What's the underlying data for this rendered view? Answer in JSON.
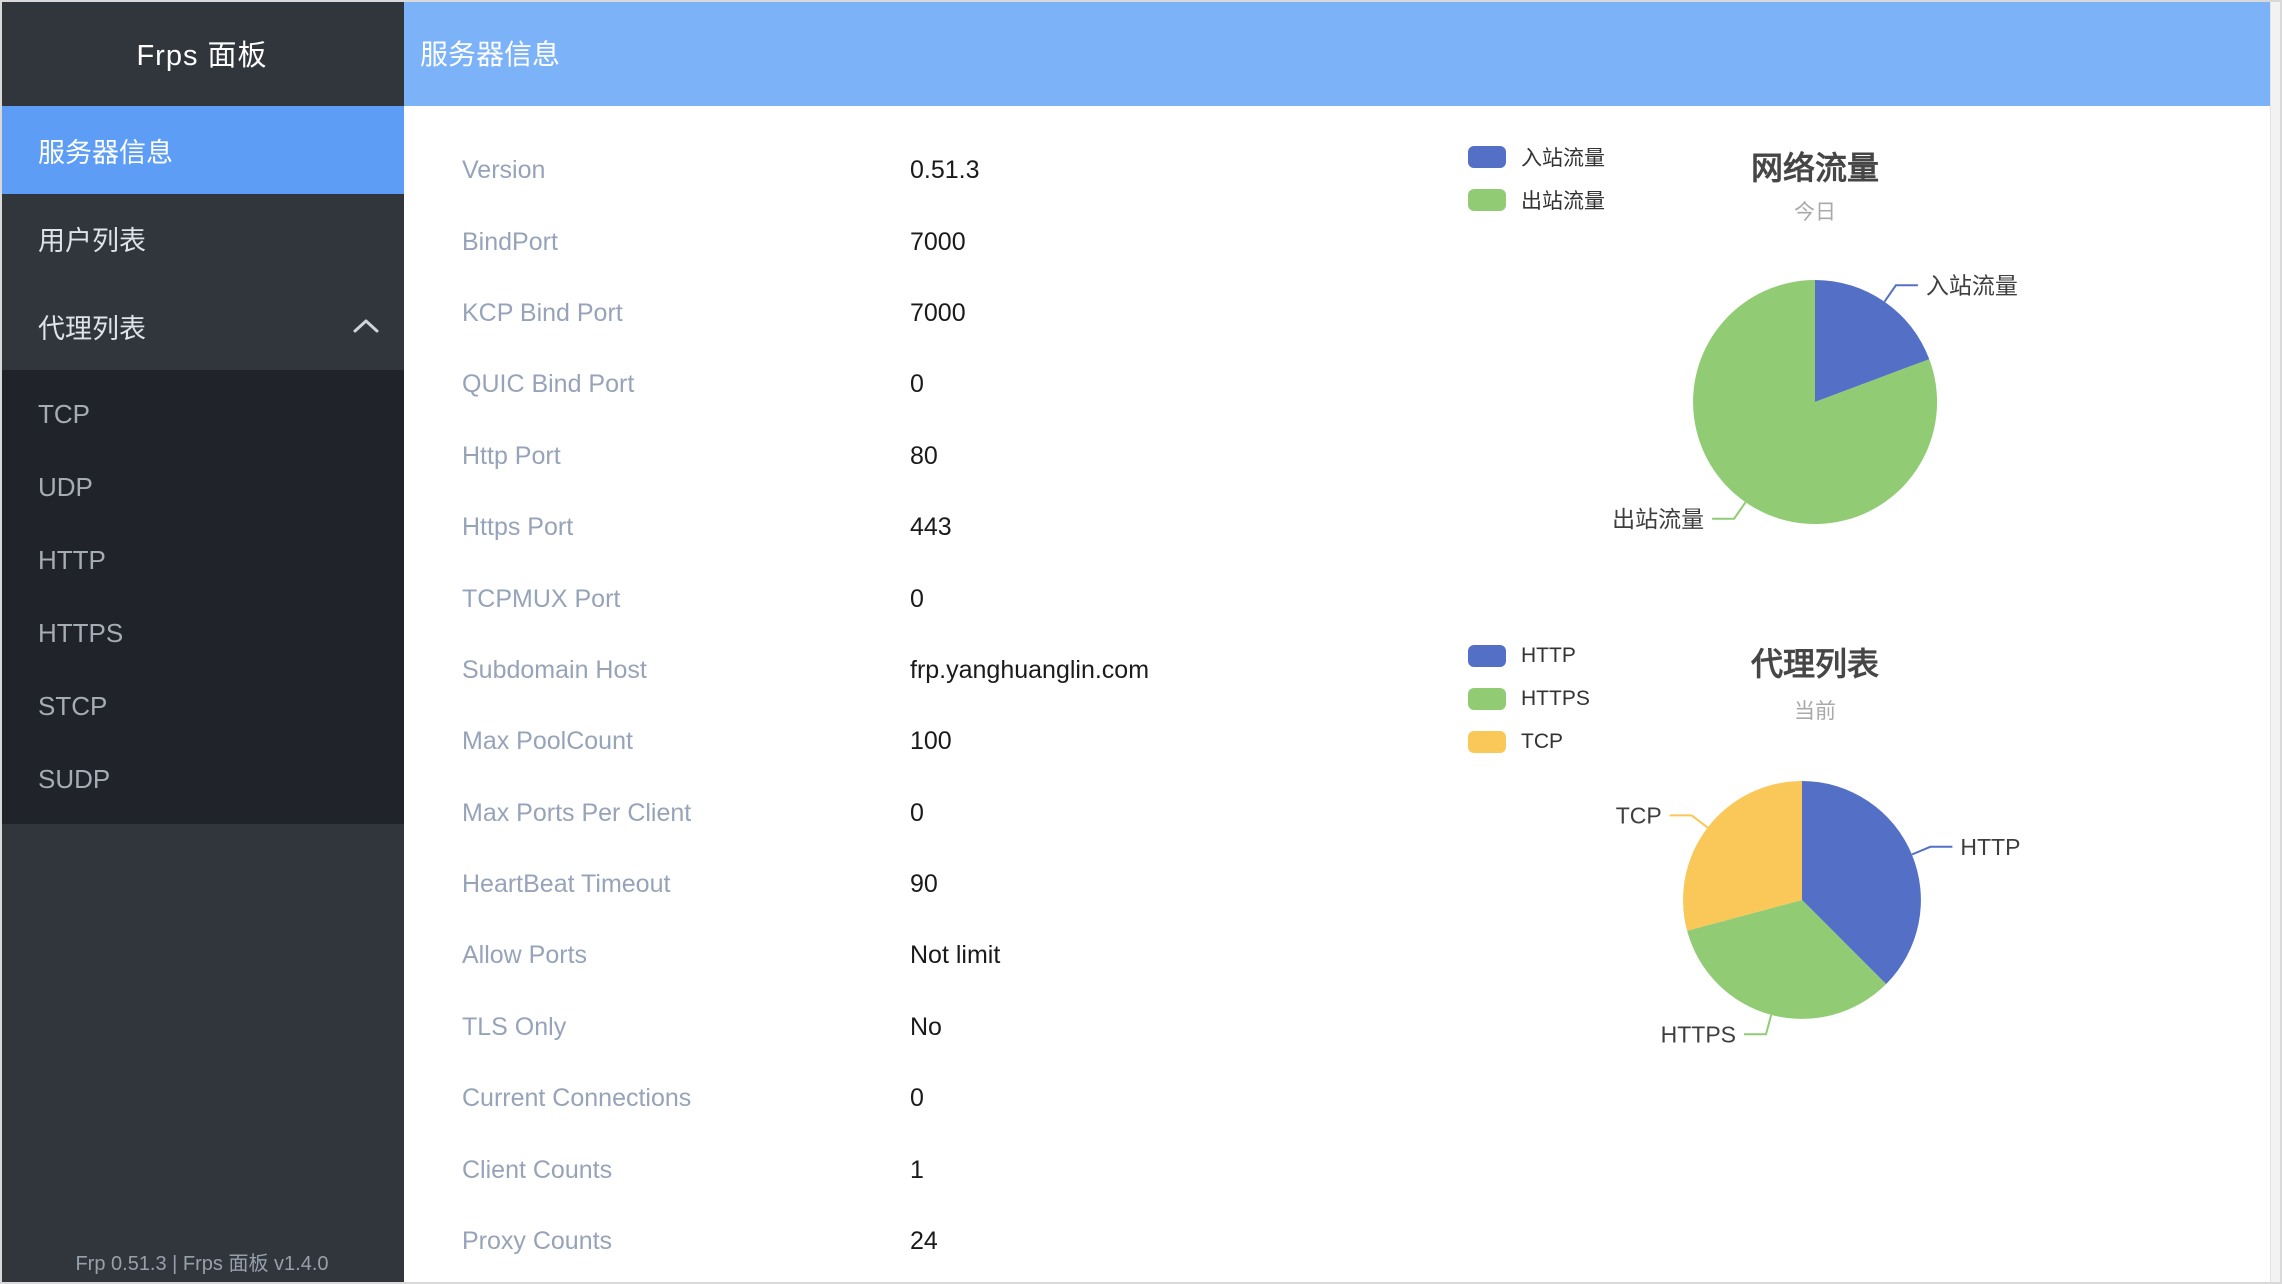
{
  "sidebar": {
    "title": "Frps 面板",
    "items": [
      {
        "label": "服务器信息",
        "active": true
      },
      {
        "label": "用户列表",
        "active": false
      },
      {
        "label": "代理列表",
        "active": false,
        "expanded": true,
        "children": [
          "TCP",
          "UDP",
          "HTTP",
          "HTTPS",
          "STCP",
          "SUDP"
        ]
      }
    ],
    "footer": "Frp 0.51.3 | Frps 面板 v1.4.0"
  },
  "header": {
    "title": "服务器信息"
  },
  "server_info": {
    "rows": [
      {
        "label": "Version",
        "value": "0.51.3"
      },
      {
        "label": "BindPort",
        "value": "7000"
      },
      {
        "label": "KCP Bind Port",
        "value": "7000"
      },
      {
        "label": "QUIC Bind Port",
        "value": "0"
      },
      {
        "label": "Http Port",
        "value": "80"
      },
      {
        "label": "Https Port",
        "value": "443"
      },
      {
        "label": "TCPMUX Port",
        "value": "0"
      },
      {
        "label": "Subdomain Host",
        "value": "frp.yanghuanglin.com"
      },
      {
        "label": "Max PoolCount",
        "value": "100"
      },
      {
        "label": "Max Ports Per Client",
        "value": "0"
      },
      {
        "label": "HeartBeat Timeout",
        "value": "90"
      },
      {
        "label": "Allow Ports",
        "value": "Not limit"
      },
      {
        "label": "TLS Only",
        "value": "No"
      },
      {
        "label": "Current Connections",
        "value": "0"
      },
      {
        "label": "Client Counts",
        "value": "1"
      },
      {
        "label": "Proxy Counts",
        "value": "24"
      }
    ]
  },
  "chart_data": [
    {
      "type": "pie",
      "title": "网络流量",
      "subtitle": "今日",
      "labels": [
        "入站流量",
        "出站流量"
      ],
      "values": [
        19.3,
        80.7
      ],
      "unit": "percent-estimated",
      "colors": [
        "#5470c6",
        "#91cc75"
      ],
      "legend_position": "top-left",
      "label_style": "outside-callout"
    },
    {
      "type": "pie",
      "title": "代理列表",
      "subtitle": "当前",
      "labels": [
        "HTTP",
        "HTTPS",
        "TCP"
      ],
      "values": [
        9,
        8,
        7
      ],
      "unit": "proxies",
      "colors": [
        "#5470c6",
        "#91cc75",
        "#fac858"
      ],
      "legend_position": "top-left",
      "label_style": "outside-callout"
    }
  ],
  "colors": {
    "header_bg": "#7cb2f7",
    "sidebar_bg": "#31363d",
    "submenu_bg": "#20242a",
    "active_item_bg": "#5d9df6",
    "info_label_text": "#97a3b9",
    "chart_title_text": "#464646"
  }
}
